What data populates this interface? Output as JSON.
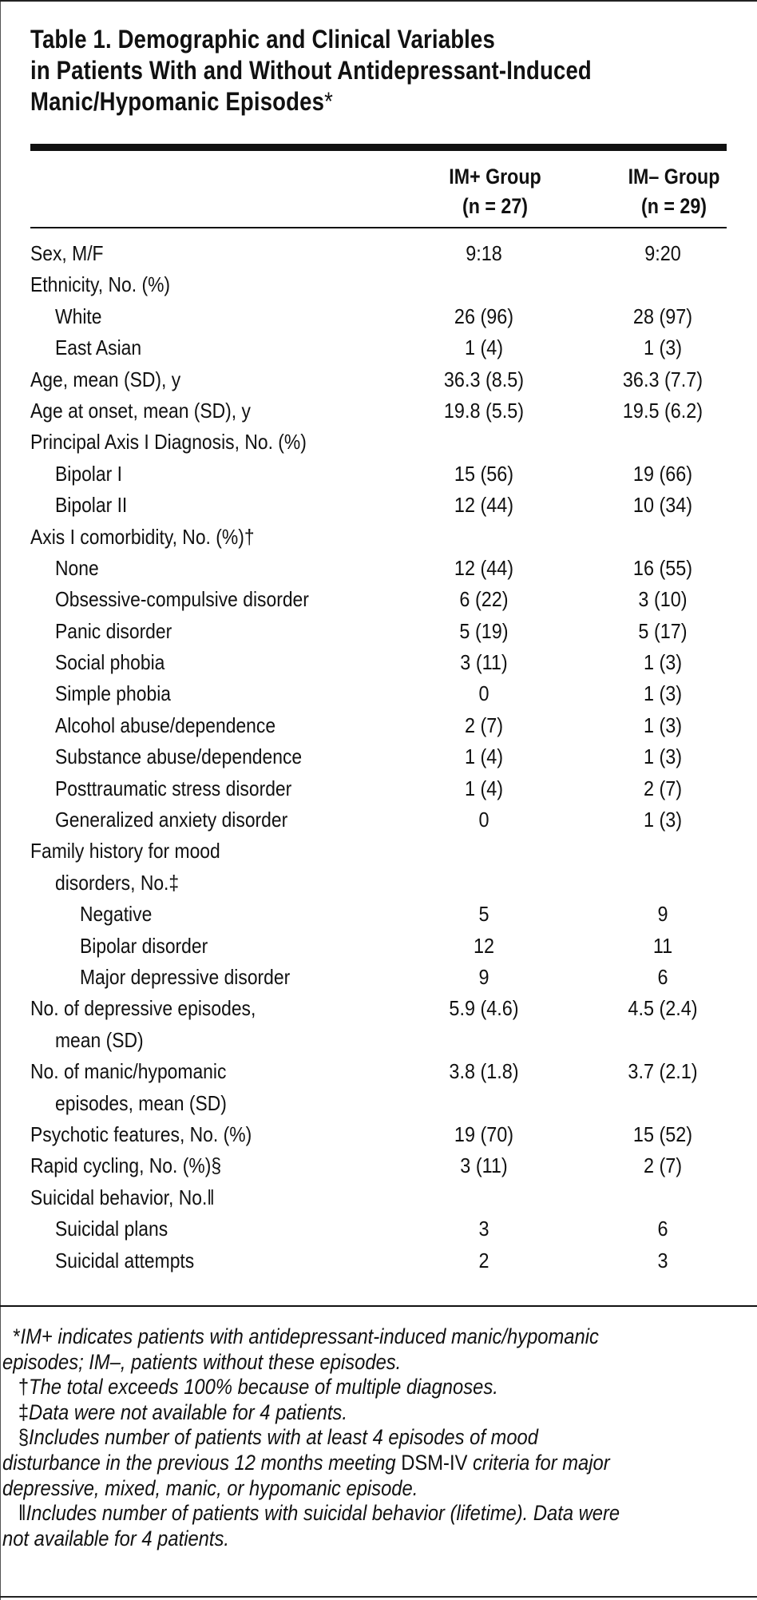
{
  "title": {
    "line1": "Table 1. Demographic and Clinical Variables",
    "line2": "in Patients With and Without Antidepressant-Induced",
    "line3": "Manic/Hypomanic Episodes",
    "mark": "*"
  },
  "columns": {
    "c1_line1": "IM+ Group",
    "c1_line2": "(n = 27)",
    "c2_line1": "IM– Group",
    "c2_line2": "(n = 29)"
  },
  "rows": [
    {
      "label": "Sex, M/F",
      "indent": 0,
      "v1": "9:18",
      "v2": "9:20"
    },
    {
      "label": "Ethnicity, No. (%)",
      "indent": 0,
      "v1": "",
      "v2": ""
    },
    {
      "label": "White",
      "indent": 1,
      "v1": "26 (96)",
      "v2": "28 (97)"
    },
    {
      "label": "East Asian",
      "indent": 1,
      "v1": "1 (4)",
      "v2": "1 (3)"
    },
    {
      "label": "Age, mean (SD), y",
      "indent": 0,
      "v1": "36.3 (8.5)",
      "v2": "36.3 (7.7)"
    },
    {
      "label": "Age at onset, mean (SD), y",
      "indent": 0,
      "v1": "19.8 (5.5)",
      "v2": "19.5 (6.2)"
    },
    {
      "label": "Principal Axis I Diagnosis, No. (%)",
      "indent": 0,
      "v1": "",
      "v2": ""
    },
    {
      "label": "Bipolar I",
      "indent": 1,
      "v1": "15 (56)",
      "v2": "19 (66)"
    },
    {
      "label": "Bipolar II",
      "indent": 1,
      "v1": "12 (44)",
      "v2": "10 (34)"
    },
    {
      "label": "Axis I comorbidity, No. (%)†",
      "indent": 0,
      "v1": "",
      "v2": ""
    },
    {
      "label": "None",
      "indent": 1,
      "v1": "12 (44)",
      "v2": "16 (55)"
    },
    {
      "label": "Obsessive-compulsive disorder",
      "indent": 1,
      "v1": "6 (22)",
      "v2": "3 (10)"
    },
    {
      "label": "Panic disorder",
      "indent": 1,
      "v1": "5 (19)",
      "v2": "5 (17)"
    },
    {
      "label": "Social phobia",
      "indent": 1,
      "v1": "3 (11)",
      "v2": "1 (3)"
    },
    {
      "label": "Simple phobia",
      "indent": 1,
      "v1": "0",
      "v2": "1 (3)"
    },
    {
      "label": "Alcohol abuse/dependence",
      "indent": 1,
      "v1": "2 (7)",
      "v2": "1 (3)"
    },
    {
      "label": "Substance abuse/dependence",
      "indent": 1,
      "v1": "1 (4)",
      "v2": "1 (3)"
    },
    {
      "label": "Posttraumatic stress disorder",
      "indent": 1,
      "v1": "1 (4)",
      "v2": "2 (7)"
    },
    {
      "label": "Generalized anxiety disorder",
      "indent": 1,
      "v1": "0",
      "v2": "1 (3)"
    },
    {
      "label": "Family history for mood",
      "indent": 0,
      "v1": "",
      "v2": ""
    },
    {
      "label": "disorders, No.‡",
      "indent": 1,
      "cont": true,
      "v1": "",
      "v2": ""
    },
    {
      "label": "Negative",
      "indent": 2,
      "v1": "5",
      "v2": "9"
    },
    {
      "label": "Bipolar disorder",
      "indent": 2,
      "v1": "12",
      "v2": "11"
    },
    {
      "label": "Major depressive disorder",
      "indent": 2,
      "v1": "9",
      "v2": "6"
    },
    {
      "label": "No. of depressive episodes,",
      "indent": 0,
      "v1": "5.9 (4.6)",
      "v2": "4.5 (2.4)"
    },
    {
      "label": "mean (SD)",
      "indent": 1,
      "cont": true,
      "v1": "",
      "v2": ""
    },
    {
      "label": "No. of manic/hypomanic",
      "indent": 0,
      "v1": "3.8 (1.8)",
      "v2": "3.7 (2.1)"
    },
    {
      "label": "episodes, mean (SD)",
      "indent": 1,
      "cont": true,
      "v1": "",
      "v2": ""
    },
    {
      "label": "Psychotic features, No. (%)",
      "indent": 0,
      "v1": "19 (70)",
      "v2": "15 (52)"
    },
    {
      "label": "Rapid cycling, No. (%)§",
      "indent": 0,
      "v1": "3 (11)",
      "v2": "2 (7)"
    },
    {
      "label": "Suicidal behavior, No.‖",
      "indent": 0,
      "v1": "",
      "v2": ""
    },
    {
      "label": "Suicidal plans",
      "indent": 1,
      "v1": "3",
      "v2": "6"
    },
    {
      "label": "Suicidal attempts",
      "indent": 1,
      "v1": "2",
      "v2": "3"
    }
  ],
  "footnotes": {
    "fn1_mark": "*",
    "fn1_text": "IM+ indicates patients with antidepressant-induced manic/hypomanic",
    "fn1_text2": "episodes; IM–, patients without these episodes.",
    "fn2_mark": "†",
    "fn2_text": "The total exceeds 100% because of multiple diagnoses.",
    "fn3_mark": "‡",
    "fn3_text": "Data were not available for 4 patients.",
    "fn4_mark": "§",
    "fn4_text_a": "Includes number of patients with at least 4 episodes of mood",
    "fn4_text_b": "disturbance in the previous 12 months meeting ",
    "fn4_upright": "DSM-IV",
    "fn4_text_c": " criteria for major",
    "fn4_text_d": "depressive, mixed, manic, or hypomanic episode.",
    "fn5_mark": "‖",
    "fn5_text": "Includes number of patients with suicidal behavior (lifetime). Data were",
    "fn5_text2": "not available for 4 patients."
  }
}
